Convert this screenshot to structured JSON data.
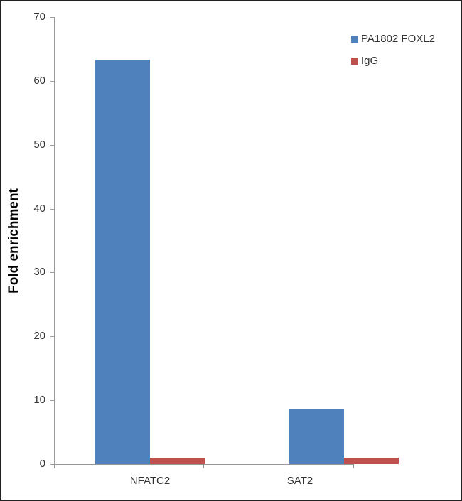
{
  "chart_data": {
    "type": "bar",
    "title": "",
    "xlabel": "",
    "ylabel": "Fold enrichment",
    "ylim": [
      0,
      70
    ],
    "yticks": [
      0,
      10,
      20,
      30,
      40,
      50,
      60,
      70
    ],
    "categories": [
      "NFATC2",
      "SAT2"
    ],
    "series": [
      {
        "name": "PA1802 FOXL2",
        "color": "#4F81BD",
        "values": [
          63.3,
          8.6
        ]
      },
      {
        "name": "IgG",
        "color": "#C0504D",
        "values": [
          1.0,
          1.0
        ]
      }
    ],
    "legend_position": "top-right",
    "grid": false
  },
  "labels": {
    "ylabel": "Fold enrichment",
    "yticks": [
      "0",
      "10",
      "20",
      "30",
      "40",
      "50",
      "60",
      "70"
    ],
    "categories": [
      "NFATC2",
      "SAT2"
    ],
    "legend": [
      "PA1802 FOXL2",
      "IgG"
    ]
  }
}
